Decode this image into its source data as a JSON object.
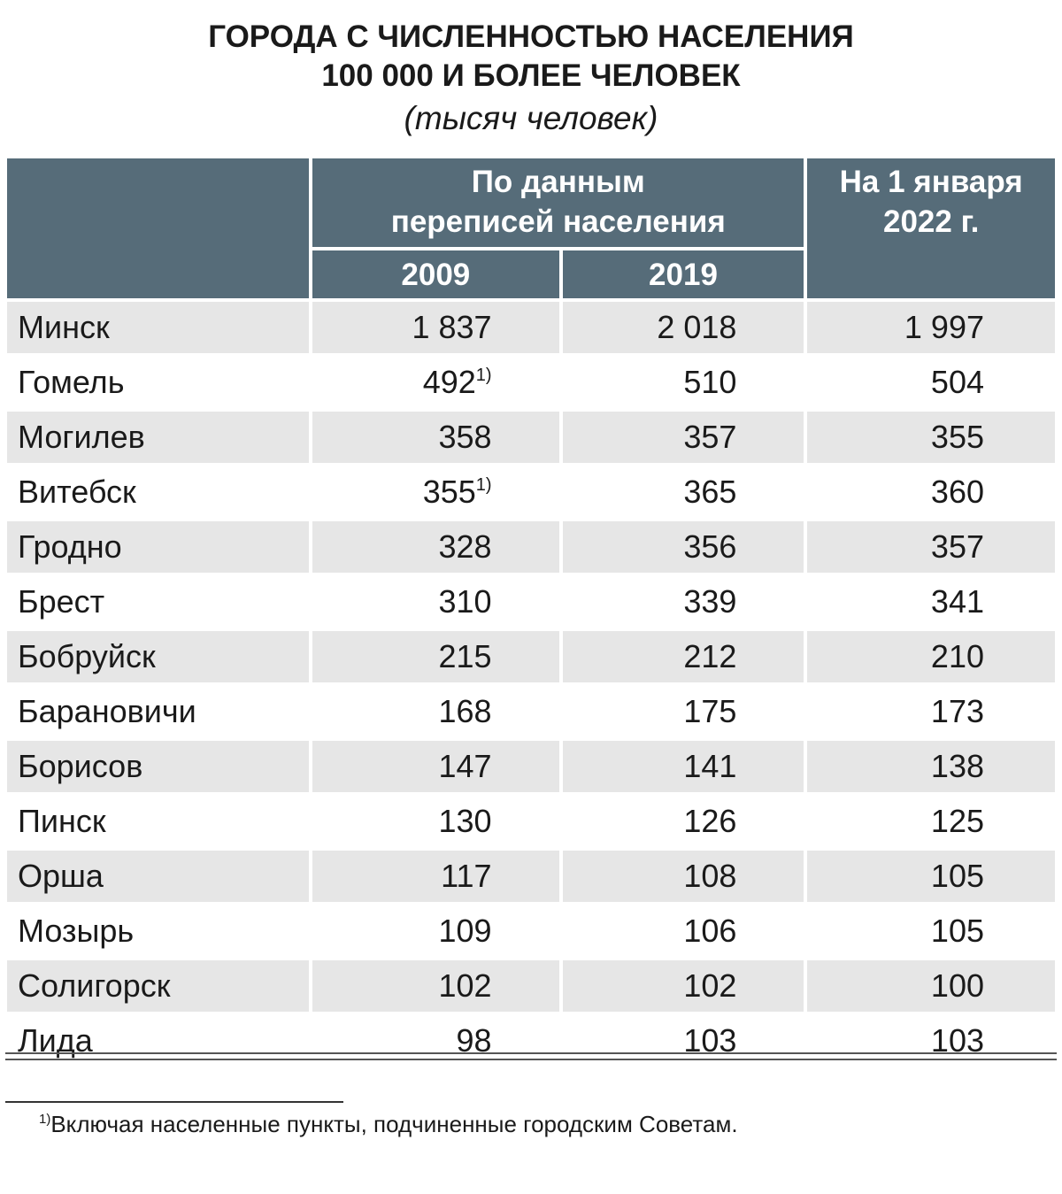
{
  "title": {
    "line1": "ГОРОДА С ЧИСЛЕННОСТЬЮ НАСЕЛЕНИЯ",
    "line2": "100 000 И БОЛЕЕ ЧЕЛОВЕК",
    "unit": "(тысяч человек)"
  },
  "header": {
    "census_group_line1": "По данным",
    "census_group_line2": "переписей населения",
    "year_2009": "2009",
    "year_2019": "2019",
    "current_line1": "На 1 января",
    "current_line2": "2022 г."
  },
  "rows": [
    {
      "city": "Минск",
      "y2009": "1 837",
      "y2009_note": "",
      "y2019": "2 018",
      "y2022": "1 997"
    },
    {
      "city": "Гомель",
      "y2009": "492",
      "y2009_note": "1)",
      "y2019": "510",
      "y2022": "504"
    },
    {
      "city": "Могилев",
      "y2009": "358",
      "y2009_note": "",
      "y2019": "357",
      "y2022": "355"
    },
    {
      "city": "Витебск",
      "y2009": "355",
      "y2009_note": "1)",
      "y2019": "365",
      "y2022": "360"
    },
    {
      "city": "Гродно",
      "y2009": "328",
      "y2009_note": "",
      "y2019": "356",
      "y2022": "357"
    },
    {
      "city": "Брест",
      "y2009": "310",
      "y2009_note": "",
      "y2019": "339",
      "y2022": "341"
    },
    {
      "city": "Бобруйск",
      "y2009": "215",
      "y2009_note": "",
      "y2019": "212",
      "y2022": "210"
    },
    {
      "city": "Барановичи",
      "y2009": "168",
      "y2009_note": "",
      "y2019": "175",
      "y2022": "173"
    },
    {
      "city": "Борисов",
      "y2009": "147",
      "y2009_note": "",
      "y2019": "141",
      "y2022": "138"
    },
    {
      "city": "Пинск",
      "y2009": "130",
      "y2009_note": "",
      "y2019": "126",
      "y2022": "125"
    },
    {
      "city": "Орша",
      "y2009": "117",
      "y2009_note": "",
      "y2019": "108",
      "y2022": "105"
    },
    {
      "city": "Мозырь",
      "y2009": "109",
      "y2009_note": "",
      "y2019": "106",
      "y2022": "105"
    },
    {
      "city": "Солигорск",
      "y2009": "102",
      "y2009_note": "",
      "y2019": "102",
      "y2022": "100"
    },
    {
      "city": "Лида",
      "y2009": "98",
      "y2009_note": "",
      "y2019": "103",
      "y2022": "103"
    }
  ],
  "footnote": {
    "mark": "1)",
    "text": "Включая населенные пункты, подчиненные городским Советам."
  },
  "colors": {
    "header_bg": "#566c79",
    "header_text": "#ffffff",
    "row_shade": "#e6e6e6"
  }
}
